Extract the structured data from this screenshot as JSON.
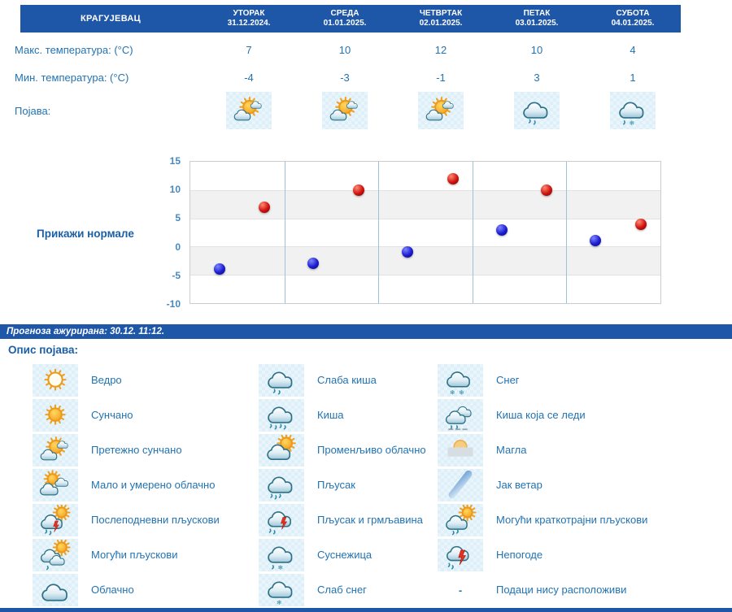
{
  "location": "КРАГУЈЕВАЦ",
  "forecast": {
    "days": [
      {
        "name": "УТОРАК",
        "date": "31.12.2024."
      },
      {
        "name": "СРЕДА",
        "date": "01.01.2025."
      },
      {
        "name": "ЧЕТВРТАК",
        "date": "02.01.2025."
      },
      {
        "name": "ПЕТАК",
        "date": "03.01.2025."
      },
      {
        "name": "СУБОТА",
        "date": "04.01.2025."
      }
    ],
    "max_label": "Макс. температура: (°C)",
    "min_label": "Мин. температура: (°C)",
    "phenomenon_label": "Појава:",
    "max_temps": [
      7,
      10,
      12,
      10,
      4
    ],
    "min_temps": [
      -4,
      -3,
      -1,
      3,
      1
    ],
    "phenomena_icons": [
      "mostly-sunny",
      "mostly-sunny",
      "mostly-sunny",
      "light-rain",
      "sleet"
    ]
  },
  "normals_link_label": "Прикажи нормале",
  "chart_data": {
    "type": "scatter",
    "categories": [
      "31.12.2024.",
      "01.01.2025.",
      "02.01.2025.",
      "03.01.2025.",
      "04.01.2025."
    ],
    "series": [
      {
        "name": "Мин. температура (°C)",
        "color": "#1c1cd0",
        "values": [
          -4,
          -3,
          -1,
          3,
          1
        ]
      },
      {
        "name": "Макс. температура (°C)",
        "color": "#cf120e",
        "values": [
          7,
          10,
          12,
          10,
          4
        ]
      }
    ],
    "title": "",
    "xlabel": "",
    "ylabel": "",
    "ylim": [
      -10,
      15
    ],
    "ytick_step": 5,
    "grid": true,
    "legend_position": "none"
  },
  "status_bar": {
    "text": "Прогноза ажурирана:  30.12. 11:12."
  },
  "legend": {
    "title": "Опис појава:",
    "columns": [
      [
        {
          "icon": "clear",
          "label": "Ведро"
        },
        {
          "icon": "sunny",
          "label": "Сунчано"
        },
        {
          "icon": "mostly-sunny",
          "label": "Претежно сунчано"
        },
        {
          "icon": "partly-cloudy",
          "label": "Мало и умерено облачно"
        },
        {
          "icon": "afternoon-showers",
          "label": "Послеподневни пљускови"
        },
        {
          "icon": "possible-showers",
          "label": "Могући пљускови"
        },
        {
          "icon": "cloudy",
          "label": "Облачно"
        }
      ],
      [
        {
          "icon": "light-rain",
          "label": "Слаба киша"
        },
        {
          "icon": "rain",
          "label": "Киша"
        },
        {
          "icon": "variable-cloudy",
          "label": "Променљиво облачно"
        },
        {
          "icon": "shower",
          "label": "Пљусак"
        },
        {
          "icon": "shower-thunder",
          "label": "Пљусак и грмљавина"
        },
        {
          "icon": "sleet",
          "label": "Суснежица"
        },
        {
          "icon": "light-snow",
          "label": "Слаб снег"
        }
      ],
      [
        {
          "icon": "snow",
          "label": "Снег"
        },
        {
          "icon": "freezing-rain",
          "label": "Киша која се леди"
        },
        {
          "icon": "fog",
          "label": "Магла"
        },
        {
          "icon": "strong-wind",
          "label": "Јак ветар"
        },
        {
          "icon": "short-showers",
          "label": "Могући краткотрајни пљускови"
        },
        {
          "icon": "storms",
          "label": "Непогоде"
        },
        {
          "icon": "no-data",
          "label": "Подаци нису расположиви"
        }
      ]
    ]
  },
  "colors": {
    "header_bg": "#1e56a8",
    "text_blue": "#2273b2",
    "heading_blue": "#1b5fa6",
    "min_dot": "#1c1cd0",
    "max_dot": "#cf120e",
    "band_gray": "#f1f1f1",
    "day_separator": "#9fc0da"
  }
}
